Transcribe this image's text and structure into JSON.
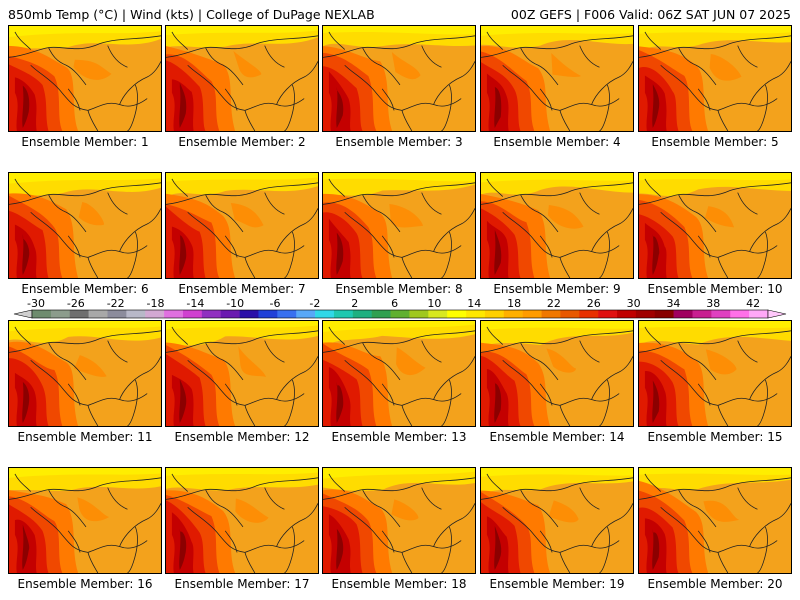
{
  "header": {
    "left": "850mb Temp (°C) | Wind (kts) | College of DuPage NEXLAB",
    "right": "00Z GEFS | F006 Valid: 06Z SAT JUN 07 2025"
  },
  "members": [
    {
      "label": "Ensemble Member: 1"
    },
    {
      "label": "Ensemble Member: 2"
    },
    {
      "label": "Ensemble Member: 3"
    },
    {
      "label": "Ensemble Member: 4"
    },
    {
      "label": "Ensemble Member: 5"
    },
    {
      "label": "Ensemble Member: 6"
    },
    {
      "label": "Ensemble Member: 7"
    },
    {
      "label": "Ensemble Member: 8"
    },
    {
      "label": "Ensemble Member: 9"
    },
    {
      "label": "Ensemble Member: 10"
    },
    {
      "label": "Ensemble Member: 11"
    },
    {
      "label": "Ensemble Member: 12"
    },
    {
      "label": "Ensemble Member: 13"
    },
    {
      "label": "Ensemble Member: 14"
    },
    {
      "label": "Ensemble Member: 15"
    },
    {
      "label": "Ensemble Member: 16"
    },
    {
      "label": "Ensemble Member: 17"
    },
    {
      "label": "Ensemble Member: 18"
    },
    {
      "label": "Ensemble Member: 19"
    },
    {
      "label": "Ensemble Member: 20"
    }
  ],
  "colorbar": {
    "ticks": [
      "-30",
      "-26",
      "-22",
      "-18",
      "-14",
      "-10",
      "-6",
      "-2",
      "2",
      "6",
      "10",
      "14",
      "18",
      "22",
      "26",
      "30",
      "34",
      "38",
      "42"
    ],
    "colors": [
      "#6e8c6e",
      "#8c9c8c",
      "#6e6e6e",
      "#a8a8a8",
      "#8c8c9c",
      "#b8b8c8",
      "#d2a8d2",
      "#e070e0",
      "#d040d0",
      "#9030c0",
      "#6a1ab0",
      "#2a10a8",
      "#2040d8",
      "#3870f0",
      "#58a8f8",
      "#30d8e8",
      "#20c8b0",
      "#20b080",
      "#30a050",
      "#60b030",
      "#a0c820",
      "#d8e820",
      "#ffff00",
      "#ffe800",
      "#ffd000",
      "#ffb000",
      "#ff9c00",
      "#f07800",
      "#e85800",
      "#e83000",
      "#e01010",
      "#c00000",
      "#a00000",
      "#880000",
      "#a00060",
      "#c82090",
      "#e040c0",
      "#ff70e8",
      "#ffa8f8"
    ]
  },
  "colors": {
    "warm_field": "#f3a21c",
    "north_band": "#ffd200",
    "hot_core": "#c40000",
    "border": "#000000"
  }
}
